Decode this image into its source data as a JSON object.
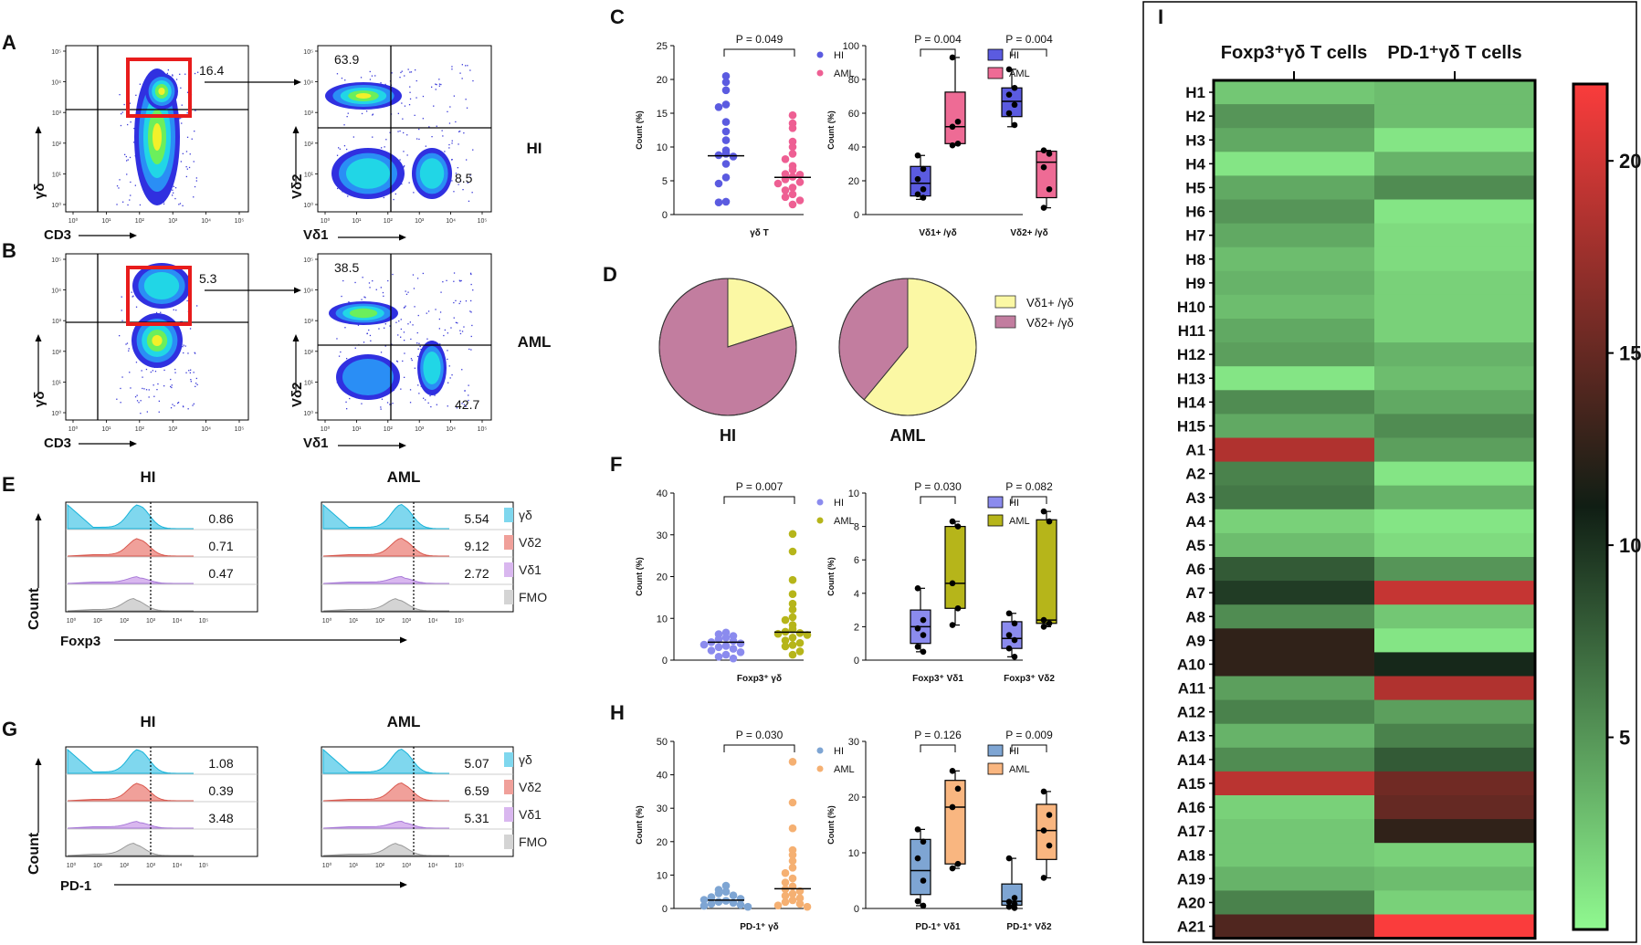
{
  "panels": {
    "A": {
      "letter": "A",
      "gate": "16.4",
      "q_upper": "63.9",
      "q_lower": "8.5",
      "group": "HI",
      "y1": "γδ",
      "x1": "CD3",
      "y2": "Vδ2",
      "x2": "Vδ1"
    },
    "B": {
      "letter": "B",
      "gate": "5.3",
      "q_upper": "38.5",
      "q_lower": "42.7",
      "group": "AML",
      "y1": "γδ",
      "x1": "CD3",
      "y2": "Vδ2",
      "x2": "Vδ1"
    },
    "C": {
      "letter": "C"
    },
    "D": {
      "letter": "D"
    },
    "E": {
      "letter": "E",
      "left_title": "HI",
      "right_title": "AML",
      "ylabel": "Count",
      "xlabel": "Foxp3",
      "hi_values": [
        "0.86",
        "0.71",
        "0.47"
      ],
      "aml_values": [
        "5.54",
        "9.12",
        "2.72"
      ],
      "legend": [
        "γδ",
        "Vδ2",
        "Vδ1",
        "FMO"
      ]
    },
    "F": {
      "letter": "F"
    },
    "G": {
      "letter": "G",
      "left_title": "HI",
      "right_title": "AML",
      "ylabel": "Count",
      "xlabel": "PD-1",
      "hi_values": [
        "1.08",
        "0.39",
        "3.48"
      ],
      "aml_values": [
        "5.07",
        "6.59",
        "5.31"
      ],
      "legend": [
        "γδ",
        "Vδ2",
        "Vδ1",
        "FMO"
      ]
    },
    "H": {
      "letter": "H"
    },
    "I": {
      "letter": "I"
    }
  },
  "flow_ticks": {
    "x": [
      "10⁰",
      "10¹",
      "10²",
      "10³",
      "10⁴",
      "10⁵"
    ],
    "y": [
      "10⁵",
      "10⁴",
      "10³",
      "10²",
      "10¹",
      "10⁰"
    ]
  },
  "colors": {
    "hist": [
      "#7fd7ee",
      "#f0a09a",
      "#d9b7ef",
      "#d4d4d4"
    ],
    "hist_line": [
      "#18b3d9",
      "#d95a50",
      "#a87ad8",
      "#9a9a9a"
    ],
    "pie_v1": "#fbf8a4",
    "pie_v2": "#c27d9f"
  },
  "chart_data": [
    {
      "id": "C1",
      "type": "scatter",
      "ylabel": "Count (%)",
      "xlabel": "γδ T",
      "ylim": [
        0,
        25
      ],
      "yticks": [
        0,
        5,
        10,
        15,
        20,
        25
      ],
      "pvalues": [
        "P = 0.049"
      ],
      "series": [
        {
          "name": "HI",
          "color": "#5b5be0",
          "median": 8.7,
          "values": [
            20.5,
            19.6,
            18.4,
            16.3,
            15.9,
            13.7,
            12.3,
            11.0,
            9.5,
            9.0,
            8.8,
            8.6,
            7.5,
            5.5,
            4.6,
            1.9,
            1.8
          ]
        },
        {
          "name": "AML",
          "color": "#ee5f93",
          "median": 5.5,
          "values": [
            14.7,
            13.5,
            12.8,
            10.8,
            10.0,
            9.0,
            8.2,
            7.2,
            6.6,
            6.0,
            5.9,
            5.6,
            5.2,
            4.8,
            4.6,
            4.0,
            3.6,
            3.0,
            2.6,
            2.1,
            1.5
          ]
        }
      ]
    },
    {
      "id": "C2",
      "type": "box",
      "ylabel": "Count (%)",
      "ylim": [
        0,
        100
      ],
      "yticks": [
        0,
        20,
        40,
        60,
        80,
        100
      ],
      "categories": [
        "Vδ1+ /γδ",
        "Vδ2+ /γδ"
      ],
      "pvalues": [
        "P = 0.004",
        "P = 0.004"
      ],
      "series": [
        {
          "name": "HI",
          "color": "#5b5be0",
          "groups": [
            {
              "min": 9,
              "q1": 11,
              "median": 18.5,
              "q3": 28.5,
              "max": 35,
              "points": [
                35,
                27,
                21,
                15,
                12,
                10
              ]
            },
            {
              "min": 52,
              "q1": 58,
              "median": 67,
              "q3": 75,
              "max": 86,
              "points": [
                86,
                75,
                71,
                65,
                60,
                53
              ]
            }
          ]
        },
        {
          "name": "AML",
          "color": "#ee6b95",
          "groups": [
            {
              "min": 41,
              "q1": 42,
              "median": 52,
              "q3": 72.5,
              "max": 93,
              "points": [
                93,
                55,
                52,
                42,
                41
              ]
            },
            {
              "min": 4,
              "q1": 10,
              "median": 31,
              "q3": 37.5,
              "max": 38,
              "points": [
                38,
                36,
                28,
                15,
                4
              ]
            }
          ]
        }
      ]
    },
    {
      "id": "D",
      "type": "pie",
      "legend": [
        "Vδ1+ /γδ",
        "Vδ2+ /γδ"
      ],
      "pies": [
        {
          "label": "HI",
          "values": [
            20,
            80
          ]
        },
        {
          "label": "AML",
          "values": [
            61,
            39
          ]
        }
      ]
    },
    {
      "id": "F1",
      "type": "scatter",
      "ylabel": "Count (%)",
      "xlabel": "Foxp3⁺ γδ",
      "ylim": [
        0,
        40
      ],
      "yticks": [
        0,
        10,
        20,
        30,
        40
      ],
      "pvalues": [
        "P = 0.007"
      ],
      "series": [
        {
          "name": "HI",
          "color": "#8b8bee",
          "median": 4.3,
          "values": [
            6.6,
            6.2,
            5.8,
            5.4,
            5.0,
            4.6,
            4.3,
            4.0,
            3.7,
            3.4,
            3.1,
            2.7,
            2.3,
            1.9,
            1.3,
            0.8,
            0.4
          ]
        },
        {
          "name": "AML",
          "color": "#b6b51a",
          "median": 6.7,
          "values": [
            30.2,
            26.0,
            19.2,
            15.8,
            13.5,
            12.1,
            10.3,
            9.6,
            8.4,
            7.4,
            6.8,
            6.5,
            6.3,
            6.0,
            5.4,
            4.7,
            4.1,
            3.6,
            3.3,
            2.1,
            1.3
          ]
        }
      ]
    },
    {
      "id": "F2",
      "type": "box",
      "ylabel": "Count (%)",
      "ylim": [
        0,
        10
      ],
      "yticks": [
        0,
        2,
        4,
        6,
        8,
        10
      ],
      "categories": [
        "Foxp3⁺ Vδ1",
        "Foxp3⁺ Vδ2"
      ],
      "pvalues": [
        "P = 0.030",
        "P = 0.082"
      ],
      "series": [
        {
          "name": "HI",
          "color": "#8b8bee",
          "groups": [
            {
              "min": 0.5,
              "q1": 1.0,
              "median": 2.0,
              "q3": 3.0,
              "max": 4.3,
              "points": [
                4.3,
                2.4,
                1.9,
                1.5,
                0.8,
                0.5
              ]
            },
            {
              "min": 0.2,
              "q1": 0.7,
              "median": 1.3,
              "q3": 2.3,
              "max": 2.8,
              "points": [
                2.8,
                2.2,
                1.5,
                1.2,
                0.7,
                0.2
              ]
            }
          ]
        },
        {
          "name": "AML",
          "color": "#b6b51a",
          "groups": [
            {
              "min": 2.1,
              "q1": 3.1,
              "median": 4.6,
              "q3": 8.0,
              "max": 8.3,
              "points": [
                8.3,
                8.0,
                4.6,
                3.1,
                2.1
              ]
            },
            {
              "min": 2.0,
              "q1": 2.2,
              "median": 2.4,
              "q3": 8.4,
              "max": 8.9,
              "points": [
                8.9,
                8.3,
                2.4,
                2.2,
                2.0
              ]
            }
          ]
        }
      ]
    },
    {
      "id": "H1",
      "type": "scatter",
      "ylabel": "Count (%)",
      "xlabel": "PD-1⁺ γδ",
      "ylim": [
        0,
        50
      ],
      "yticks": [
        0,
        10,
        20,
        30,
        40,
        50
      ],
      "pvalues": [
        "P = 0.030"
      ],
      "series": [
        {
          "name": "HI",
          "color": "#7ea5d3",
          "median": 2.5,
          "values": [
            6.8,
            5.6,
            5.0,
            4.5,
            3.9,
            3.4,
            2.9,
            2.6,
            2.3,
            2.0,
            1.7,
            1.4,
            1.1,
            0.8,
            0.5
          ]
        },
        {
          "name": "AML",
          "color": "#f5b072",
          "median": 5.9,
          "values": [
            43.9,
            31.7,
            24.0,
            17.5,
            16.0,
            14.2,
            12.2,
            10.6,
            9.0,
            7.8,
            6.6,
            5.8,
            5.2,
            4.4,
            3.8,
            3.1,
            2.5,
            1.9,
            1.4,
            0.9,
            0.5
          ]
        }
      ]
    },
    {
      "id": "H2",
      "type": "box",
      "ylabel": "Count (%)",
      "ylim": [
        0,
        30
      ],
      "yticks": [
        0,
        10,
        20,
        30
      ],
      "categories": [
        "PD-1⁺ Vδ1",
        "PD-1⁺ Vδ2"
      ],
      "pvalues": [
        "P = 0.126",
        "P = 0.009"
      ],
      "series": [
        {
          "name": "HI",
          "color": "#7ea5d3",
          "groups": [
            {
              "min": 0.5,
              "q1": 2.5,
              "median": 6.8,
              "q3": 12.4,
              "max": 14.2,
              "points": [
                14.2,
                12.0,
                9.0,
                5.0,
                1.3,
                0.5
              ]
            },
            {
              "min": 0.1,
              "q1": 0.6,
              "median": 1.3,
              "q3": 4.4,
              "max": 9.0,
              "points": [
                9.0,
                1.9,
                1.2,
                0.8,
                0.3,
                0.1
              ]
            }
          ]
        },
        {
          "name": "AML",
          "color": "#f9b680",
          "groups": [
            {
              "min": 7.2,
              "q1": 8.0,
              "median": 18.2,
              "q3": 23.0,
              "max": 24.7,
              "points": [
                24.7,
                21.5,
                18.2,
                8.0,
                7.2
              ]
            },
            {
              "min": 5.5,
              "q1": 8.8,
              "median": 14.0,
              "q3": 18.7,
              "max": 21.0,
              "points": [
                21.0,
                16.8,
                14.0,
                11.3,
                5.5
              ]
            }
          ]
        }
      ]
    },
    {
      "id": "I",
      "type": "heatmap",
      "columns": [
        "Foxp3⁺γδ T cells",
        "PD-1⁺γδ T cells"
      ],
      "colorbar_ticks": [
        20,
        15,
        10,
        5
      ],
      "vrange": [
        0,
        22
      ],
      "rows": [
        "H1",
        "H2",
        "H3",
        "H4",
        "H5",
        "H6",
        "H7",
        "H8",
        "H9",
        "H10",
        "H11",
        "H12",
        "H13",
        "H14",
        "H15",
        "A1",
        "A2",
        "A3",
        "A4",
        "A5",
        "A6",
        "A7",
        "A8",
        "A9",
        "A10",
        "A11",
        "A12",
        "A13",
        "A14",
        "A15",
        "A16",
        "A17",
        "A18",
        "A19",
        "A20",
        "A21"
      ],
      "values": [
        [
          2.5,
          3.0
        ],
        [
          5.0,
          3.0
        ],
        [
          4.0,
          1.0
        ],
        [
          1.0,
          3.5
        ],
        [
          4.0,
          5.5
        ],
        [
          5.0,
          1.0
        ],
        [
          4.0,
          1.5
        ],
        [
          3.0,
          1.5
        ],
        [
          3.5,
          2.0
        ],
        [
          3.0,
          2.0
        ],
        [
          4.0,
          2.0
        ],
        [
          4.5,
          3.5
        ],
        [
          1.0,
          3.0
        ],
        [
          5.5,
          4.0
        ],
        [
          4.0,
          5.5
        ],
        [
          18.5,
          4.5
        ],
        [
          6.0,
          1.0
        ],
        [
          6.5,
          3.5
        ],
        [
          2.0,
          1.0
        ],
        [
          3.0,
          1.5
        ],
        [
          8.0,
          5.0
        ],
        [
          9.5,
          19.5
        ],
        [
          5.5,
          2.5
        ],
        [
          12.5,
          1.0
        ],
        [
          12.5,
          10.5
        ],
        [
          4.5,
          18.5
        ],
        [
          6.0,
          4.5
        ],
        [
          3.5,
          6.0
        ],
        [
          5.5,
          8.0
        ],
        [
          19.0,
          15.5
        ],
        [
          2.0,
          15.0
        ],
        [
          2.5,
          12.5
        ],
        [
          2.5,
          2.0
        ],
        [
          3.5,
          3.0
        ],
        [
          6.0,
          2.0
        ],
        [
          14.0,
          22.0
        ]
      ]
    }
  ]
}
